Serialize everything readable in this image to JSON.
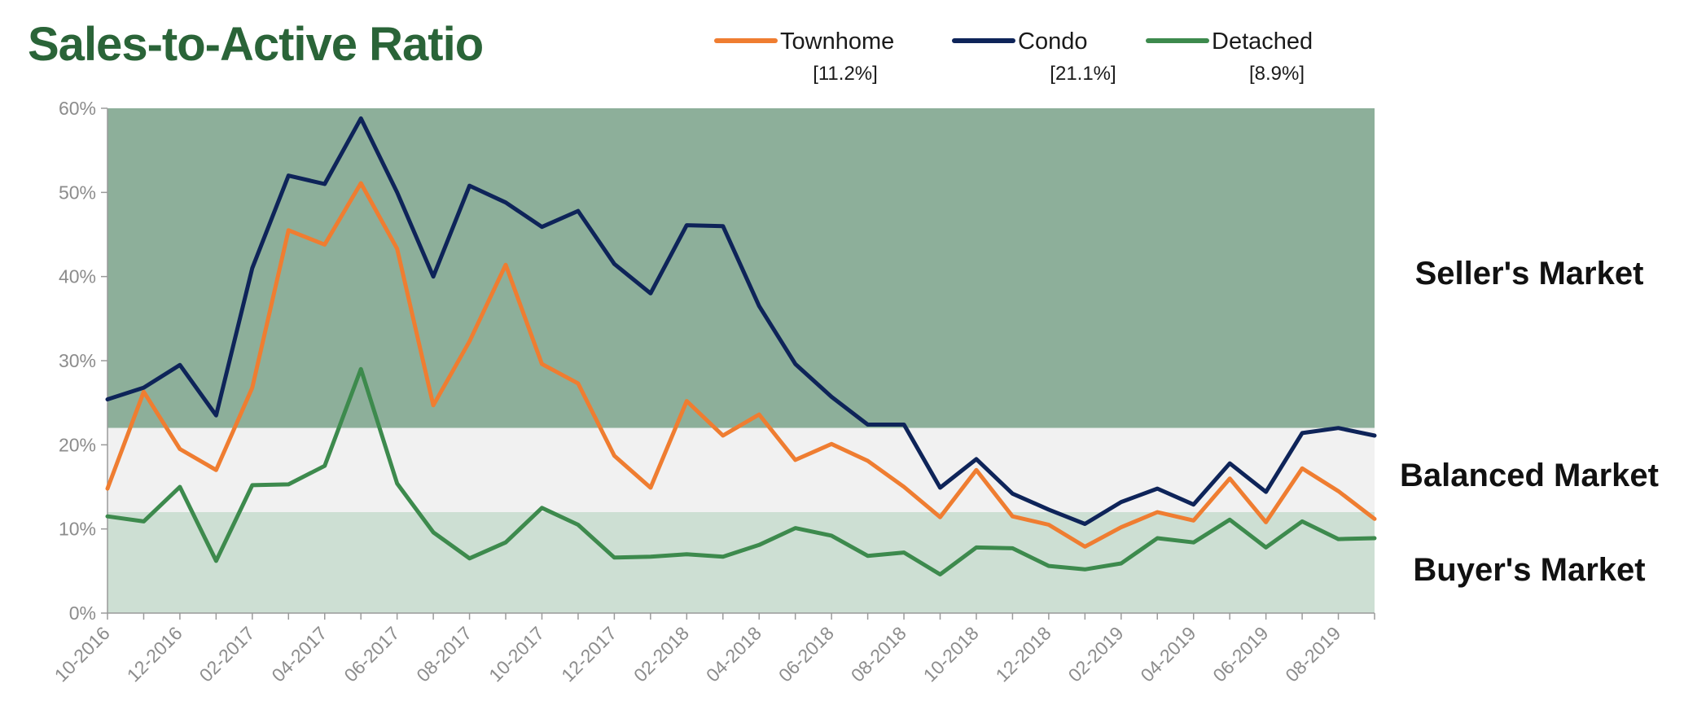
{
  "chart_data": {
    "type": "line",
    "title": "Sales-to-Active Ratio",
    "ylim": [
      0,
      60
    ],
    "yticks": [
      "0%",
      "10%",
      "20%",
      "30%",
      "40%",
      "50%",
      "60%"
    ],
    "ytick_values": [
      0,
      10,
      20,
      30,
      40,
      50,
      60
    ],
    "x": [
      "10-2016",
      "11-2016",
      "12-2016",
      "01-2017",
      "02-2017",
      "03-2017",
      "04-2017",
      "05-2017",
      "06-2017",
      "07-2017",
      "08-2017",
      "09-2017",
      "10-2017",
      "11-2017",
      "12-2017",
      "01-2018",
      "02-2018",
      "03-2018",
      "04-2018",
      "05-2018",
      "06-2018",
      "07-2018",
      "08-2018",
      "09-2018",
      "10-2018",
      "11-2018",
      "12-2018",
      "01-2019",
      "02-2019",
      "03-2019",
      "04-2019",
      "05-2019",
      "06-2019",
      "07-2019",
      "08-2019",
      "09-2019"
    ],
    "xtick_labels": [
      "10-2016",
      "12-2016",
      "02-2017",
      "04-2017",
      "06-2017",
      "08-2017",
      "10-2017",
      "12-2017",
      "02-2018",
      "04-2018",
      "06-2018",
      "08-2018",
      "10-2018",
      "12-2018",
      "02-2019",
      "04-2019",
      "06-2019",
      "08-2019"
    ],
    "series": [
      {
        "name": "Townhome",
        "current": "[11.2%]",
        "color": "#ef7d31",
        "values": [
          14.8,
          26.3,
          19.5,
          17.0,
          26.8,
          45.5,
          43.8,
          51.1,
          43.3,
          24.7,
          32.3,
          41.4,
          29.6,
          27.3,
          18.7,
          14.9,
          25.2,
          21.1,
          23.6,
          18.2,
          20.1,
          18.1,
          15.0,
          11.4,
          17.0,
          11.5,
          10.5,
          7.9,
          10.2,
          12.0,
          11.0,
          16.0,
          10.8,
          17.2,
          14.5,
          11.2
        ]
      },
      {
        "name": "Condo",
        "current": "[21.1%]",
        "color": "#0e2459",
        "values": [
          25.4,
          26.8,
          29.5,
          23.5,
          41.0,
          52.0,
          51.0,
          58.8,
          50.0,
          40.0,
          50.8,
          48.8,
          45.9,
          47.8,
          41.5,
          38.0,
          46.1,
          46.0,
          36.5,
          29.6,
          25.7,
          22.4,
          22.4,
          14.9,
          18.3,
          14.2,
          12.3,
          10.6,
          13.2,
          14.8,
          12.9,
          17.8,
          14.4,
          21.4,
          22.0,
          21.1
        ]
      },
      {
        "name": "Detached",
        "current": "[8.9%]",
        "color": "#3d8a4d",
        "values": [
          11.5,
          10.9,
          15.0,
          6.2,
          15.2,
          15.3,
          17.5,
          29.0,
          15.4,
          9.6,
          6.5,
          8.4,
          12.5,
          10.5,
          6.6,
          6.7,
          7.0,
          6.7,
          8.1,
          10.1,
          9.2,
          6.8,
          7.2,
          4.6,
          7.8,
          7.7,
          5.6,
          5.2,
          5.9,
          8.9,
          8.4,
          11.1,
          7.8,
          10.9,
          8.8,
          8.9
        ]
      }
    ],
    "zones": [
      {
        "name": "Seller's Market",
        "from": 22,
        "to": 60,
        "color": "#8daf9a"
      },
      {
        "name": "Balanced Market",
        "from": 12,
        "to": 22,
        "color": "#f1f1f1"
      },
      {
        "name": "Buyer's Market",
        "from": 0,
        "to": 12,
        "color": "#cddfd3"
      }
    ],
    "grid": false,
    "legend_position": "top"
  }
}
